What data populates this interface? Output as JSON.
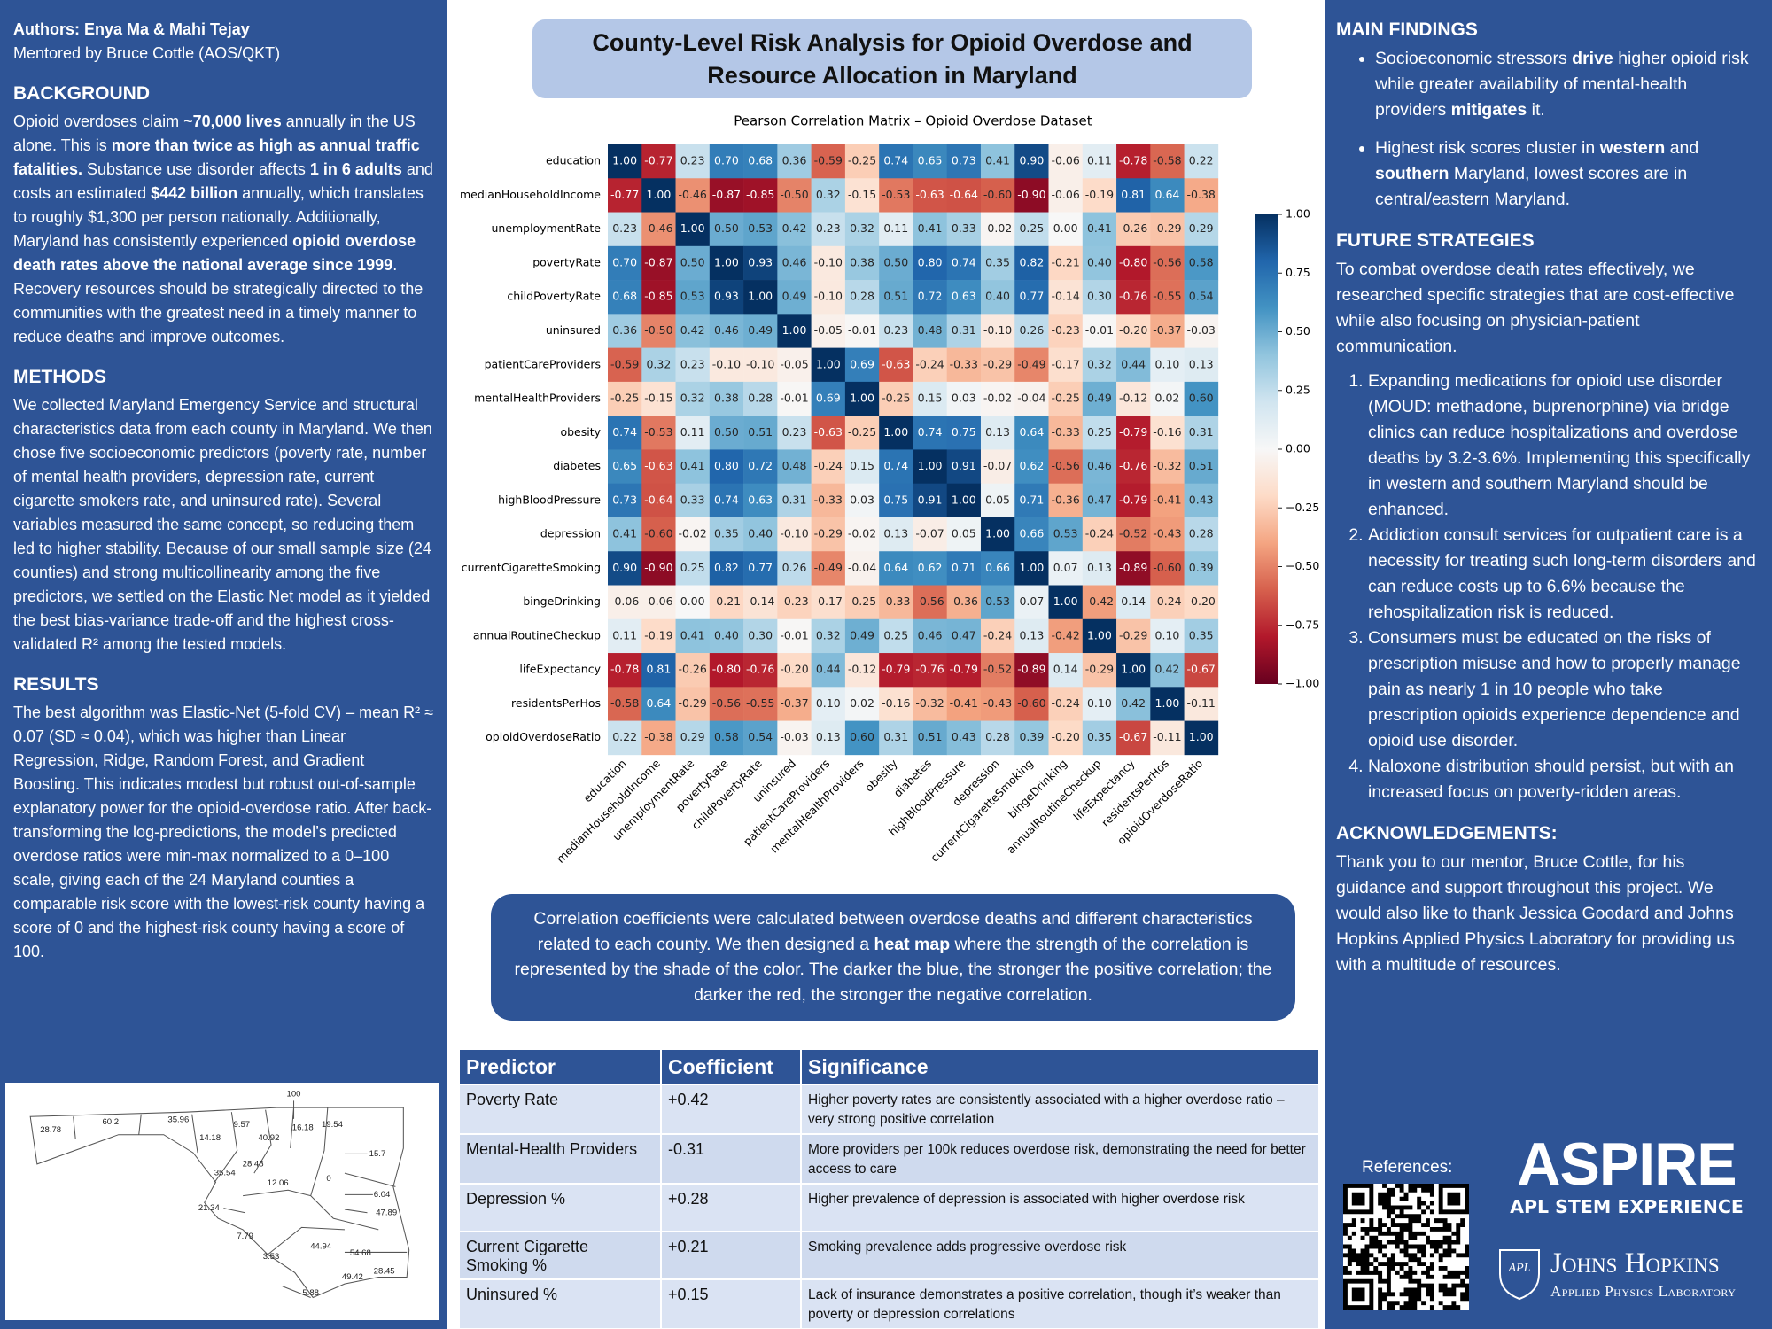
{
  "poster_title": "County-Level Risk Analysis for Opioid Overdose and Resource Allocation in Maryland",
  "left": {
    "authors": "Authors: Enya Ma & Mahi Tejay",
    "mentor": "Mentored by Bruce Cottle (AOS/QKT)",
    "background": {
      "heading": "BACKGROUND",
      "paragraph": [
        "Opioid overdoses claim ~",
        {
          "text": "70,000 lives",
          "bold": true
        },
        " annually in the US alone. This is ",
        {
          "text": "more than twice as high as annual traffic fatalities.",
          "bold": true
        },
        " Substance use disorder affects ",
        {
          "text": "1 in 6 adults",
          "bold": true
        },
        " and costs an estimated ",
        {
          "text": "$442 billion",
          "bold": true
        },
        " annually, which translates to roughly $1,300 per person nationally. Additionally, Maryland has consistently experienced ",
        {
          "text": "opioid overdose death rates above the national average since 1999",
          "bold": true
        },
        ". Recovery resources should be strategically directed to the communities with the greatest need in a timely manner to reduce deaths and improve outcomes."
      ]
    },
    "methods": {
      "heading": "METHODS",
      "paragraph": [
        "We collected Maryland Emergency Service and structural characteristics data from each county in Maryland. We then chose five socioeconomic predictors (poverty rate, number of mental health providers, depression rate, current cigarette smokers rate, and uninsured rate). Several variables measured the same concept, so reducing them led to higher stability. Because of our small sample size (24 counties) and strong multicollinearity among the five predictors, we settled on the Elastic Net model as it yielded the best bias-variance trade-off and the highest cross-validated R² among the tested models."
      ]
    },
    "results": {
      "heading": "RESULTS",
      "paragraph": [
        "The best algorithm was Elastic-Net (5-fold CV) – mean R² ≈ 0.07 (SD ≈ 0.04), which was higher than Linear Regression, Ridge, Random Forest, and Gradient Boosting. This indicates modest but robust out-of-sample explanatory power for the opioid-overdose ratio. After back-transforming the log-predictions, the model’s predicted overdose ratios were min-max normalized to a 0–100 scale, giving each of the 24 Maryland counties a comparable risk score with the lowest-risk county having a score of 0 and the highest-risk county having a score of 100."
      ]
    }
  },
  "map": {
    "labels": [
      100,
      28.78,
      60.2,
      35.96,
      9.57,
      40.92,
      16.18,
      19.54,
      14.18,
      15.7,
      28.48,
      35.54,
      12.06,
      0,
      6.04,
      47.89,
      21.34,
      7.79,
      3.53,
      44.94,
      54.68,
      49.42,
      28.45,
      5.88
    ]
  },
  "chart_data": {
    "type": "heatmap",
    "title": "Pearson Correlation Matrix – Opioid Overdose Dataset",
    "categories": [
      "education",
      "medianHouseholdIncome",
      "unemploymentRate",
      "povertyRate",
      "childPovertyRate",
      "uninsured",
      "patientCareProviders",
      "mentalHealthProviders",
      "obesity",
      "diabetes",
      "highBloodPressure",
      "depression",
      "currentCigaretteSmoking",
      "bingeDrinking",
      "annualRoutineCheckup",
      "lifeExpectancy",
      "residentsPerHos",
      "opioidOverdoseRatio"
    ],
    "values": [
      [
        1.0,
        -0.77,
        0.23,
        0.7,
        0.68,
        0.36,
        -0.59,
        -0.25,
        0.74,
        0.65,
        0.73,
        0.41,
        0.9,
        -0.06,
        0.11,
        -0.78,
        -0.58,
        0.22
      ],
      [
        -0.77,
        1.0,
        -0.46,
        -0.87,
        -0.85,
        -0.5,
        0.32,
        -0.15,
        -0.53,
        -0.63,
        -0.64,
        -0.6,
        -0.9,
        -0.06,
        -0.19,
        0.81,
        0.64,
        -0.38
      ],
      [
        0.23,
        -0.46,
        1.0,
        0.5,
        0.53,
        0.42,
        0.23,
        0.32,
        0.11,
        0.41,
        0.33,
        -0.02,
        0.25,
        0.0,
        0.41,
        -0.26,
        -0.29,
        0.29
      ],
      [
        0.7,
        -0.87,
        0.5,
        1.0,
        0.93,
        0.46,
        -0.1,
        0.38,
        0.5,
        0.8,
        0.74,
        0.35,
        0.82,
        -0.21,
        0.4,
        -0.8,
        -0.56,
        0.58
      ],
      [
        0.68,
        -0.85,
        0.53,
        0.93,
        1.0,
        0.49,
        -0.1,
        0.28,
        0.51,
        0.72,
        0.63,
        0.4,
        0.77,
        -0.14,
        0.3,
        -0.76,
        -0.55,
        0.54
      ],
      [
        0.36,
        -0.5,
        0.42,
        0.46,
        0.49,
        1.0,
        -0.05,
        -0.01,
        0.23,
        0.48,
        0.31,
        -0.1,
        0.26,
        -0.23,
        -0.01,
        -0.2,
        -0.37,
        -0.03
      ],
      [
        -0.59,
        0.32,
        0.23,
        -0.1,
        -0.1,
        -0.05,
        1.0,
        0.69,
        -0.63,
        -0.24,
        -0.33,
        -0.29,
        -0.49,
        -0.17,
        0.32,
        0.44,
        0.1,
        0.13
      ],
      [
        -0.25,
        -0.15,
        0.32,
        0.38,
        0.28,
        -0.01,
        0.69,
        1.0,
        -0.25,
        0.15,
        0.03,
        -0.02,
        -0.04,
        -0.25,
        0.49,
        -0.12,
        0.02,
        0.6
      ],
      [
        0.74,
        -0.53,
        0.11,
        0.5,
        0.51,
        0.23,
        -0.63,
        -0.25,
        1.0,
        0.74,
        0.75,
        0.13,
        0.64,
        -0.33,
        0.25,
        -0.79,
        -0.16,
        0.31
      ],
      [
        0.65,
        -0.63,
        0.41,
        0.8,
        0.72,
        0.48,
        -0.24,
        0.15,
        0.74,
        1.0,
        0.91,
        -0.07,
        0.62,
        -0.56,
        0.46,
        -0.76,
        -0.32,
        0.51
      ],
      [
        0.73,
        -0.64,
        0.33,
        0.74,
        0.63,
        0.31,
        -0.33,
        0.03,
        0.75,
        0.91,
        1.0,
        0.05,
        0.71,
        -0.36,
        0.47,
        -0.79,
        -0.41,
        0.43
      ],
      [
        0.41,
        -0.6,
        -0.02,
        0.35,
        0.4,
        -0.1,
        -0.29,
        -0.02,
        0.13,
        -0.07,
        0.05,
        1.0,
        0.66,
        0.53,
        -0.24,
        -0.52,
        -0.43,
        0.28
      ],
      [
        0.9,
        -0.9,
        0.25,
        0.82,
        0.77,
        0.26,
        -0.49,
        -0.04,
        0.64,
        0.62,
        0.71,
        0.66,
        1.0,
        0.07,
        0.13,
        -0.89,
        -0.6,
        0.39
      ],
      [
        -0.06,
        -0.06,
        0.0,
        -0.21,
        -0.14,
        -0.23,
        -0.17,
        -0.25,
        -0.33,
        -0.56,
        -0.36,
        0.53,
        0.07,
        1.0,
        -0.42,
        0.14,
        -0.24,
        -0.2
      ],
      [
        0.11,
        -0.19,
        0.41,
        0.4,
        0.3,
        -0.01,
        0.32,
        0.49,
        0.25,
        0.46,
        0.47,
        -0.24,
        0.13,
        -0.42,
        1.0,
        -0.29,
        0.1,
        0.35
      ],
      [
        -0.78,
        0.81,
        -0.26,
        -0.8,
        -0.76,
        -0.2,
        0.44,
        -0.12,
        -0.79,
        -0.76,
        -0.79,
        -0.52,
        -0.89,
        0.14,
        -0.29,
        1.0,
        0.42,
        -0.67
      ],
      [
        -0.58,
        0.64,
        -0.29,
        -0.56,
        -0.55,
        -0.37,
        0.1,
        0.02,
        -0.16,
        -0.32,
        -0.41,
        -0.43,
        -0.6,
        -0.24,
        0.1,
        0.42,
        1.0,
        -0.11
      ],
      [
        0.22,
        -0.38,
        0.29,
        0.58,
        0.54,
        -0.03,
        0.13,
        0.6,
        0.31,
        0.51,
        0.43,
        0.28,
        0.39,
        -0.2,
        0.35,
        -0.67,
        -0.11,
        1.0
      ]
    ],
    "value_labels": [
      [
        "1.00",
        "-0.77",
        "0.23",
        "0.70",
        "0.68",
        "0.36",
        "-0.59",
        "-0.25",
        "0.74",
        "0.65",
        "0.73",
        "0.41",
        "0.90",
        "-0.06",
        "0.11",
        "-0.78",
        "-0.58",
        "0.22"
      ],
      [
        "-0.77",
        "1.00",
        "-0.46",
        "-0.87",
        "-0.85",
        "-0.50",
        "0.32",
        "-0.15",
        "-0.53",
        "-0.63",
        "-0.64",
        "-0.60",
        "-0.90",
        "-0.06",
        "-0.19",
        "0.81",
        "0.64",
        "-0.38"
      ],
      [
        "0.23",
        "-0.46",
        "1.00",
        "0.50",
        "0.53",
        "0.42",
        "0.23",
        "0.32",
        "0.11",
        "0.41",
        "0.33",
        "-0.02",
        "0.25",
        "0.00",
        "0.41",
        "-0.26",
        "-0.29",
        "0.29"
      ],
      [
        "0.70",
        "-0.87",
        "0.50",
        "1.00",
        "0.93",
        "0.46",
        "-0.10",
        "0.38",
        "0.50",
        "0.80",
        "0.74",
        "0.35",
        "0.82",
        "-0.21",
        "0.40",
        "-0.80",
        "-0.56",
        "0.58"
      ],
      [
        "0.68",
        "-0.85",
        "0.53",
        "0.93",
        "1.00",
        "0.49",
        "-0.10",
        "0.28",
        "0.51",
        "0.72",
        "0.63",
        "0.40",
        "0.77",
        "-0.14",
        "0.30",
        "-0.76",
        "-0.55",
        "0.54"
      ],
      [
        "0.36",
        "-0.50",
        "0.42",
        "0.46",
        "0.49",
        "1.00",
        "-0.05",
        "-0.01",
        "0.23",
        "0.48",
        "0.31",
        "-0.10",
        "0.26",
        "-0.23",
        "-0.01",
        "-0.20",
        "-0.37",
        "-0.03"
      ],
      [
        "-0.59",
        "0.32",
        "0.23",
        "-0.10",
        "-0.10",
        "-0.05",
        "1.00",
        "0.69",
        "-0.63",
        "-0.24",
        "-0.33",
        "-0.29",
        "-0.49",
        "-0.17",
        "0.32",
        "0.44",
        "0.10",
        "0.13"
      ],
      [
        "-0.25",
        "-0.15",
        "0.32",
        "0.38",
        "0.28",
        "-0.01",
        "0.69",
        "1.00",
        "-0.25",
        "0.15",
        "0.03",
        "-0.02",
        "-0.04",
        "-0.25",
        "0.49",
        "-0.12",
        "0.02",
        "0.60"
      ],
      [
        "0.74",
        "-0.53",
        "0.11",
        "0.50",
        "0.51",
        "0.23",
        "-0.63",
        "-0.25",
        "1.00",
        "0.74",
        "0.75",
        "0.13",
        "0.64",
        "-0.33",
        "0.25",
        "-0.79",
        "-0.16",
        "0.31"
      ],
      [
        "0.65",
        "-0.63",
        "0.41",
        "0.80",
        "0.72",
        "0.48",
        "-0.24",
        "0.15",
        "0.74",
        "1.00",
        "0.91",
        "-0.07",
        "0.62",
        "-0.56",
        "0.46",
        "-0.76",
        "-0.32",
        "0.51"
      ],
      [
        "0.73",
        "-0.64",
        "0.33",
        "0.74",
        "0.63",
        "0.31",
        "-0.33",
        "0.03",
        "0.75",
        "0.91",
        "1.00",
        "0.05",
        "0.71",
        "-0.36",
        "0.47",
        "-0.79",
        "-0.41",
        "0.43"
      ],
      [
        "0.41",
        "-0.60",
        "-0.02",
        "0.35",
        "0.40",
        "-0.10",
        "-0.29",
        "-0.02",
        "0.13",
        "-0.07",
        "0.05",
        "1.00",
        "0.66",
        "0.53",
        "-0.24",
        "-0.52",
        "-0.43",
        "0.28"
      ],
      [
        "0.90",
        "-0.90",
        "0.25",
        "0.82",
        "0.77",
        "0.26",
        "-0.49",
        "-0.04",
        "0.64",
        "0.62",
        "0.71",
        "0.66",
        "1.00",
        "0.07",
        "0.13",
        "-0.89",
        "-0.60",
        "0.39"
      ],
      [
        "-0.06",
        "-0.06",
        "0.00",
        "-0.21",
        "-0.14",
        "-0.23",
        "-0.17",
        "-0.25",
        "-0.33",
        "-0.56",
        "-0.36",
        "0.53",
        "0.07",
        "1.00",
        "-0.42",
        "0.14",
        "-0.24",
        "-0.20"
      ],
      [
        "0.11",
        "-0.19",
        "0.41",
        "0.40",
        "0.30",
        "-0.01",
        "0.32",
        "0.49",
        "0.25",
        "0.46",
        "0.47",
        "-0.24",
        "0.13",
        "-0.42",
        "1.00",
        "-0.29",
        "0.10",
        "0.35"
      ],
      [
        "-0.78",
        "0.81",
        "-0.26",
        "-0.80",
        "-0.76",
        "-0.20",
        "0.44",
        "-0.12",
        "-0.79",
        "-0.76",
        "-0.79",
        "-0.52",
        "-0.89",
        "0.14",
        "-0.29",
        "1.00",
        "0.42",
        "-0.67"
      ],
      [
        "-0.58",
        "0.64",
        "-0.29",
        "-0.56",
        "-0.55",
        "-0.37",
        "0.10",
        "0.02",
        "-0.16",
        "-0.32",
        "-0.41",
        "-0.43",
        "-0.60",
        "-0.24",
        "0.10",
        "0.42",
        "1.00",
        "-0.11"
      ],
      [
        "0.22",
        "-0.38",
        "0.29",
        "0.58",
        "0.54",
        "-0.03",
        "0.13",
        "0.60",
        "0.31",
        "0.51",
        "0.43",
        "0.28",
        "0.39",
        "-0.20",
        "0.35",
        "-0.67",
        "-0.11",
        "1.00"
      ]
    ],
    "zlim": [
      -1,
      1
    ],
    "colors": [
      "#67001f",
      "#b2182b",
      "#d6604d",
      "#f4a582",
      "#fddbc7",
      "#f7f7f7",
      "#d1e5f0",
      "#92c5de",
      "#4393c3",
      "#2166ac",
      "#053061"
    ],
    "colorbar_ticks": [
      {
        "value": 1,
        "label": "1.00"
      },
      0.75,
      {
        "value": 0.5,
        "label": "0.50"
      },
      0.25,
      {
        "value": 0,
        "label": "0.00"
      },
      {
        "value": -0.25,
        "label": "−0.25"
      },
      {
        "value": -0.5,
        "label": "−0.50"
      },
      {
        "value": -0.75,
        "label": "−0.75"
      },
      {
        "value": -1,
        "label": "−1.00"
      }
    ]
  },
  "description": [
    "Correlation coefficients were calculated between overdose deaths and different characteristics related to each county.  We then designed a ",
    {
      "text": "heat map",
      "bold": true
    },
    " where the strength of the correlation is represented by the shade of the color. The darker the blue, the stronger the positive correlation; the darker the red, the stronger the negative correlation."
  ],
  "table": {
    "header": [
      "Predictor",
      "Coefficient",
      "Significance"
    ],
    "rows": [
      [
        "Poverty Rate",
        "+0.42",
        "Higher poverty rates are consistently associated with a higher overdose ratio – very strong positive correlation"
      ],
      [
        "Mental-Health Providers",
        "-0.31",
        "More providers per 100k reduces overdose risk, demonstrating the need for better access to care"
      ],
      [
        "Depression %",
        "+0.28",
        "Higher prevalence of depression is associated with higher overdose risk"
      ],
      [
        "Current Cigarette Smoking %",
        "+0.21",
        "Smoking prevalence adds progressive overdose risk"
      ],
      [
        "Uninsured %",
        "+0.15",
        "Lack of insurance demonstrates a positive correlation, though it’s weaker than poverty or depression correlations"
      ]
    ]
  },
  "right": {
    "main_findings": {
      "heading": "MAIN FINDINGS",
      "items": [
        [
          "Socioeconomic stressors ",
          {
            "text": "drive",
            "bold": true
          },
          " higher opioid risk while greater availability of mental-health providers ",
          {
            "text": "mitigates",
            "bold": true
          },
          " it."
        ],
        [
          "Highest risk scores cluster in ",
          {
            "text": "western",
            "bold": true
          },
          " and ",
          {
            "text": "southern",
            "bold": true
          },
          " Maryland, lowest scores are in central/eastern Maryland."
        ]
      ]
    },
    "future_strategies": {
      "heading": "FUTURE STRATEGIES",
      "paragraph": "To combat overdose death rates effectively, we researched specific strategies that are cost-effective while also focusing on physician-patient communication.",
      "items": [
        "Expanding medications for opioid use disorder (MOUD: methadone, buprenorphine) via bridge clinics can reduce hospitalizations and overdose deaths by 3.2-3.6%. Implementing this specifically in western and southern Maryland should be enhanced.",
        "Addiction consult services for outpatient care is a necessity for treating such long-term disorders and can reduce costs up to 6.6% because the rehospitalization risk is reduced.",
        "Consumers must be educated on the risks of prescription misuse and how to properly manage pain as nearly 1 in 10 people who take prescription opioids experience dependence and opioid use disorder.",
        "Naloxone distribution should persist, but with an increased focus on poverty-ridden areas."
      ]
    },
    "acknowledgements": {
      "heading": "ACKNOWLEDGEMENTS:",
      "paragraph": "Thank you to our mentor, Bruce Cottle, for his guidance and support throughout this project. We would also like to thank Jessica Goodard and Johns Hopkins Applied Physics Laboratory for providing us with a multitude of resources."
    },
    "references": "References:",
    "logo": {
      "aspire": "ASPIRE",
      "aspire_sub": "APL STEM EXPERIENCE",
      "apl": "APL",
      "jhu": "Johns Hopkins",
      "jhu_sub": "Applied Physics Laboratory"
    }
  }
}
